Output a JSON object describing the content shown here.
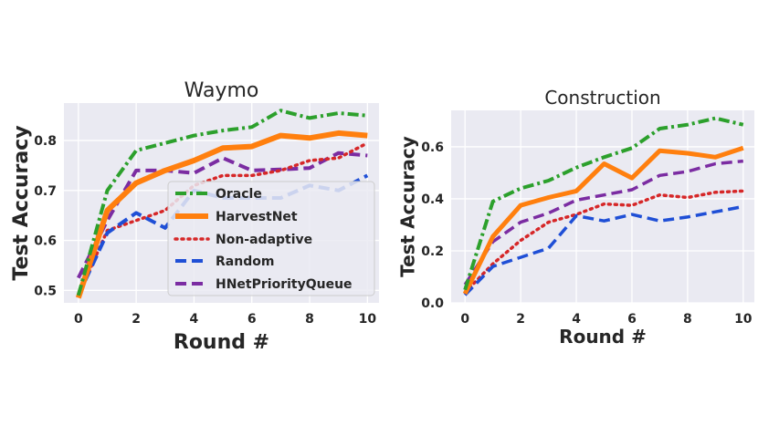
{
  "colors": {
    "Oracle": "#2ca02c",
    "HarvestNet": "#ff7f0e",
    "Non-adaptive": "#d62728",
    "Random": "#1f4fd6",
    "HNetPriorityQueue": "#7b2ca2",
    "plot_bg": "#eaeaf2",
    "grid": "#ffffff"
  },
  "legend": {
    "location": "lower-right of left panel",
    "entries": [
      "Oracle",
      "HarvestNet",
      "Non-adaptive",
      "Random",
      "HNetPriorityQueue"
    ]
  },
  "chart_data": [
    {
      "type": "line",
      "title": "Waymo",
      "xlabel": "Round #",
      "ylabel": "Test Accuracy",
      "xlim": [
        -0.5,
        10.4
      ],
      "ylim": [
        0.475,
        0.875
      ],
      "xticks": [
        0,
        2,
        4,
        6,
        8,
        10
      ],
      "yticks": [
        0.5,
        0.6,
        0.7,
        0.8
      ],
      "ytick_labels": [
        "0.5",
        "0.6",
        "0.7",
        "0.8"
      ],
      "grid": true,
      "x": [
        0,
        1,
        2,
        3,
        4,
        5,
        6,
        7,
        8,
        9,
        10
      ],
      "series": [
        {
          "name": "Oracle",
          "style": "dashdot",
          "values": [
            0.49,
            0.7,
            0.78,
            0.795,
            0.81,
            0.82,
            0.827,
            0.86,
            0.845,
            0.855,
            0.85
          ]
        },
        {
          "name": "HarvestNet",
          "style": "solid",
          "values": [
            0.485,
            0.66,
            0.715,
            0.74,
            0.76,
            0.785,
            0.788,
            0.81,
            0.805,
            0.815,
            0.81
          ]
        },
        {
          "name": "Non-adaptive",
          "style": "dotted",
          "values": [
            0.49,
            0.62,
            0.64,
            0.66,
            0.71,
            0.73,
            0.73,
            0.74,
            0.76,
            0.765,
            0.795
          ]
        },
        {
          "name": "Random",
          "style": "dashed",
          "values": [
            0.49,
            0.615,
            0.655,
            0.625,
            0.7,
            0.685,
            0.685,
            0.685,
            0.71,
            0.7,
            0.73
          ]
        },
        {
          "name": "HNetPriorityQueue",
          "style": "dashed",
          "values": [
            0.525,
            0.64,
            0.74,
            0.74,
            0.735,
            0.765,
            0.74,
            0.742,
            0.745,
            0.775,
            0.77
          ]
        }
      ]
    },
    {
      "type": "line",
      "title": "Construction",
      "xlabel": "Round #",
      "ylabel": "Test Accuracy",
      "xlim": [
        -0.5,
        10.4
      ],
      "ylim": [
        0.0,
        0.74
      ],
      "xticks": [
        0,
        2,
        4,
        6,
        8,
        10
      ],
      "yticks": [
        0.0,
        0.2,
        0.4,
        0.6
      ],
      "ytick_labels": [
        "0.0",
        "0.2",
        "0.4",
        "0.6"
      ],
      "grid": true,
      "x": [
        0,
        1,
        2,
        3,
        4,
        5,
        6,
        7,
        8,
        9,
        10
      ],
      "series": [
        {
          "name": "Oracle",
          "style": "dashdot",
          "values": [
            0.05,
            0.39,
            0.44,
            0.47,
            0.52,
            0.56,
            0.595,
            0.67,
            0.685,
            0.71,
            0.685
          ]
        },
        {
          "name": "HarvestNet",
          "style": "solid",
          "values": [
            0.035,
            0.255,
            0.375,
            0.405,
            0.43,
            0.535,
            0.48,
            0.585,
            0.575,
            0.56,
            0.595
          ]
        },
        {
          "name": "Non-adaptive",
          "style": "dotted",
          "values": [
            0.04,
            0.15,
            0.24,
            0.31,
            0.34,
            0.38,
            0.375,
            0.415,
            0.405,
            0.425,
            0.43
          ]
        },
        {
          "name": "Random",
          "style": "dashed",
          "values": [
            0.03,
            0.14,
            0.175,
            0.21,
            0.335,
            0.315,
            0.34,
            0.315,
            0.33,
            0.35,
            0.37
          ]
        },
        {
          "name": "HNetPriorityQueue",
          "style": "dashed",
          "values": [
            0.07,
            0.235,
            0.31,
            0.345,
            0.395,
            0.415,
            0.435,
            0.49,
            0.505,
            0.535,
            0.545
          ]
        }
      ]
    }
  ]
}
